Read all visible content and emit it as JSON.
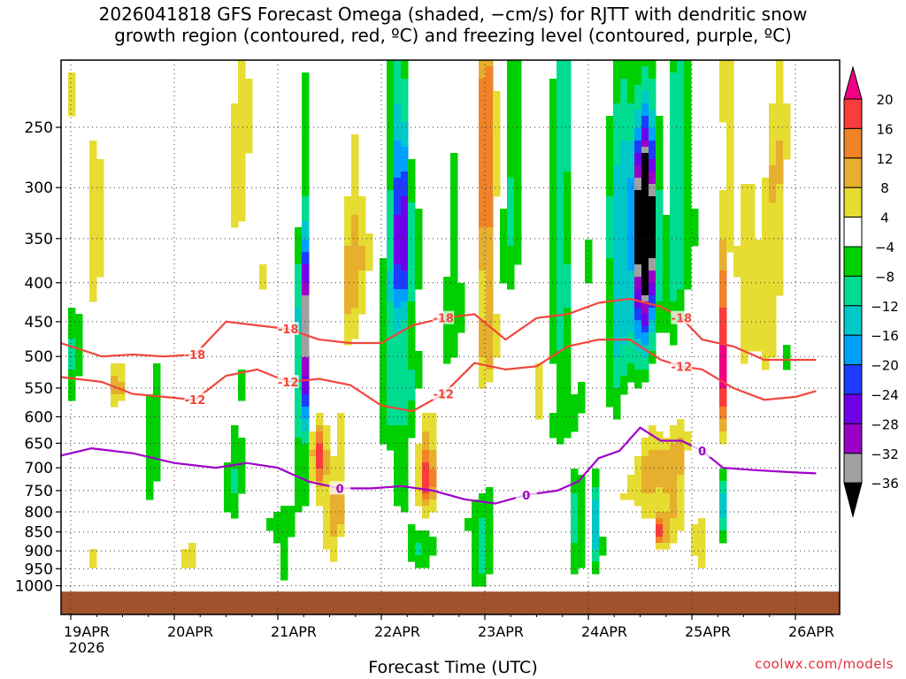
{
  "title_line1": "2026041818 GFS Forecast Omega (shaded, −cm/s) for RJTT with dendritic snow",
  "title_line2": "growth region (contoured, red, ºC) and freezing level (contoured, purple, ºC)",
  "credit": "coolwx.com/models",
  "chart_data": {
    "type": "heatmap",
    "title": "2026041818 GFS Forecast Omega (shaded, −cm/s) for RJTT with dendritic snow growth region (contoured, red, ºC) and freezing level (contoured, purple, ºC)",
    "xlabel": "Forecast Time (UTC)",
    "ylabel": "Pressure (hPa)",
    "x_unit": "days since 2026-04-19 00 UTC",
    "xlim": [
      -0.2,
      7.2
    ],
    "ylim": [
      1020,
      200
    ],
    "x_ticks": [
      {
        "value": 0,
        "label": "19APR"
      },
      {
        "value": 1,
        "label": "20APR"
      },
      {
        "value": 2,
        "label": "21APR"
      },
      {
        "value": 3,
        "label": "22APR"
      },
      {
        "value": 4,
        "label": "23APR"
      },
      {
        "value": 5,
        "label": "24APR"
      },
      {
        "value": 6,
        "label": "25APR"
      },
      {
        "value": 7,
        "label": "26APR"
      }
    ],
    "year_label": "2026",
    "y_ticks": [
      {
        "value": 250,
        "label": "250"
      },
      {
        "value": 300,
        "label": "300"
      },
      {
        "value": 350,
        "label": "350"
      },
      {
        "value": 400,
        "label": "400"
      },
      {
        "value": 450,
        "label": "450"
      },
      {
        "value": 500,
        "label": "500"
      },
      {
        "value": 550,
        "label": "550"
      },
      {
        "value": 600,
        "label": "600"
      },
      {
        "value": 650,
        "label": "650"
      },
      {
        "value": 700,
        "label": "700"
      },
      {
        "value": 750,
        "label": "750"
      },
      {
        "value": 800,
        "label": "800"
      },
      {
        "value": 850,
        "label": "850"
      },
      {
        "value": 900,
        "label": "900"
      },
      {
        "value": 950,
        "label": "950"
      },
      {
        "value": 1000,
        "label": "1000"
      }
    ],
    "grid": true,
    "colorbar": {
      "levels": [
        -36,
        -32,
        -28,
        -24,
        -20,
        -16,
        -12,
        -8,
        -4,
        4,
        8,
        12,
        16,
        20
      ],
      "colors": [
        "#000000",
        "#a0a0a0",
        "#9a00c8",
        "#7000e8",
        "#1e3cff",
        "#00a0ff",
        "#00c8c8",
        "#00dc90",
        "#00d000",
        "#ffffff",
        "#e6dc32",
        "#e6af2d",
        "#f08228",
        "#fa3c3c",
        "#f00082"
      ],
      "labels": [
        "20",
        "16",
        "12",
        "8",
        "4",
        "−4",
        "−8",
        "−12",
        "−16",
        "−20",
        "−24",
        "−28",
        "−32",
        "−36"
      ]
    },
    "omega_features": [
      {
        "x": 0.2,
        "p": 300,
        "value": 6,
        "wx": 0.12,
        "wp": 130
      },
      {
        "x": 0.45,
        "p": 550,
        "value": 10,
        "wx": 0.1,
        "wp": 35
      },
      {
        "x": 0.2,
        "p": 920,
        "value": 8,
        "wx": 0.06,
        "wp": 40
      },
      {
        "x": 0.0,
        "p": 480,
        "value": -6,
        "wx": 0.08,
        "wp": 90
      },
      {
        "x": 0.75,
        "p": 650,
        "value": -6,
        "wx": 0.1,
        "wp": 120
      },
      {
        "x": 1.1,
        "p": 920,
        "value": 6,
        "wx": 0.12,
        "wp": 40
      },
      {
        "x": 1.7,
        "p": 300,
        "value": 5,
        "wx": 0.15,
        "wp": 130
      },
      {
        "x": 1.55,
        "p": 700,
        "value": -6,
        "wx": 0.12,
        "wp": 150
      },
      {
        "x": 2.25,
        "p": 460,
        "value": -30,
        "wx": 0.04,
        "wp": 110
      },
      {
        "x": 2.25,
        "p": 560,
        "value": -12,
        "wx": 0.08,
        "wp": 230
      },
      {
        "x": 2.4,
        "p": 680,
        "value": 18,
        "wx": 0.08,
        "wp": 80
      },
      {
        "x": 2.55,
        "p": 800,
        "value": 8,
        "wx": 0.15,
        "wp": 120
      },
      {
        "x": 2.75,
        "p": 380,
        "value": 9,
        "wx": 0.15,
        "wp": 110
      },
      {
        "x": 2.05,
        "p": 870,
        "value": -8,
        "wx": 0.1,
        "wp": 110
      },
      {
        "x": 3.2,
        "p": 330,
        "value": -26,
        "wx": 0.08,
        "wp": 100
      },
      {
        "x": 3.15,
        "p": 500,
        "value": -12,
        "wx": 0.15,
        "wp": 220
      },
      {
        "x": 3.45,
        "p": 720,
        "value": 18,
        "wx": 0.1,
        "wp": 80
      },
      {
        "x": 3.35,
        "p": 880,
        "value": -10,
        "wx": 0.1,
        "wp": 90
      },
      {
        "x": 4.0,
        "p": 250,
        "value": 17,
        "wx": 0.08,
        "wp": 150
      },
      {
        "x": 4.05,
        "p": 480,
        "value": 8,
        "wx": 0.1,
        "wp": 80
      },
      {
        "x": 3.7,
        "p": 400,
        "value": -6,
        "wx": 0.12,
        "wp": 130
      },
      {
        "x": 3.95,
        "p": 880,
        "value": -10,
        "wx": 0.12,
        "wp": 110
      },
      {
        "x": 4.3,
        "p": 300,
        "value": -8,
        "wx": 0.1,
        "wp": 170
      },
      {
        "x": 4.5,
        "p": 500,
        "value": 5,
        "wx": 0.1,
        "wp": 180
      },
      {
        "x": 4.75,
        "p": 380,
        "value": -10,
        "wx": 0.12,
        "wp": 320
      },
      {
        "x": 4.9,
        "p": 850,
        "value": -14,
        "wx": 0.05,
        "wp": 110
      },
      {
        "x": 5.05,
        "p": 820,
        "value": -18,
        "wx": 0.05,
        "wp": 110
      },
      {
        "x": 5.3,
        "p": 360,
        "value": -14,
        "wx": 0.15,
        "wp": 220
      },
      {
        "x": 5.55,
        "p": 330,
        "value": -40,
        "wx": 0.1,
        "wp": 75
      },
      {
        "x": 5.55,
        "p": 390,
        "value": -24,
        "wx": 0.12,
        "wp": 130
      },
      {
        "x": 5.7,
        "p": 720,
        "value": 11,
        "wx": 0.28,
        "wp": 120
      },
      {
        "x": 5.7,
        "p": 850,
        "value": 16,
        "wx": 0.05,
        "wp": 40
      },
      {
        "x": 5.9,
        "p": 300,
        "value": -10,
        "wx": 0.15,
        "wp": 200
      },
      {
        "x": 6.05,
        "p": 880,
        "value": 8,
        "wx": 0.1,
        "wp": 50
      },
      {
        "x": 6.3,
        "p": 500,
        "value": 22,
        "wx": 0.04,
        "wp": 130
      },
      {
        "x": 6.35,
        "p": 250,
        "value": 11,
        "wx": 0.05,
        "wp": 100
      },
      {
        "x": 6.3,
        "p": 780,
        "value": -14,
        "wx": 0.05,
        "wp": 80
      },
      {
        "x": 6.6,
        "p": 420,
        "value": 10,
        "wx": 0.15,
        "wp": 90
      },
      {
        "x": 6.8,
        "p": 300,
        "value": 6,
        "wx": 0.15,
        "wp": 110
      },
      {
        "x": 6.95,
        "p": 430,
        "value": -6,
        "wx": 0.05,
        "wp": 80
      }
    ],
    "contours": [
      {
        "name": "-18",
        "color": "#f0463c",
        "x": [
          -0.2,
          0.3,
          0.6,
          0.9,
          1.2,
          1.5,
          1.8,
          2.1,
          2.4,
          2.7,
          3.0,
          3.3,
          3.6,
          3.9,
          4.2,
          4.5,
          4.8,
          5.1,
          5.4,
          5.7,
          5.9,
          6.1,
          6.4,
          6.7,
          7.0,
          7.2
        ],
        "p": [
          475,
          500,
          497,
          500,
          497,
          450,
          455,
          460,
          475,
          480,
          480,
          455,
          445,
          440,
          475,
          445,
          440,
          425,
          420,
          430,
          445,
          475,
          485,
          505,
          505,
          505
        ]
      },
      {
        "name": "-12",
        "color": "#f0463c",
        "x": [
          -0.2,
          0.3,
          0.6,
          0.9,
          1.2,
          1.5,
          1.8,
          2.1,
          2.4,
          2.7,
          3.0,
          3.3,
          3.6,
          3.9,
          4.2,
          4.5,
          4.8,
          5.1,
          5.4,
          5.7,
          5.9,
          6.1,
          6.4,
          6.7,
          7.0,
          7.2
        ],
        "p": [
          530,
          540,
          560,
          565,
          570,
          530,
          520,
          540,
          535,
          545,
          580,
          590,
          560,
          510,
          520,
          515,
          485,
          475,
          475,
          505,
          515,
          520,
          550,
          570,
          565,
          555
        ]
      },
      {
        "name": "0",
        "color": "#a000c8",
        "x": [
          -0.2,
          0.2,
          0.6,
          1.0,
          1.4,
          1.7,
          2.0,
          2.3,
          2.6,
          2.9,
          3.2,
          3.5,
          3.8,
          4.1,
          4.4,
          4.7,
          4.9,
          5.1,
          5.3,
          5.5,
          5.7,
          5.9,
          6.1,
          6.3,
          6.6,
          7.0,
          7.2
        ],
        "p": [
          680,
          660,
          670,
          690,
          700,
          690,
          700,
          730,
          745,
          745,
          740,
          750,
          770,
          780,
          760,
          750,
          730,
          680,
          665,
          620,
          645,
          645,
          665,
          700,
          705,
          710,
          712
        ]
      }
    ]
  }
}
